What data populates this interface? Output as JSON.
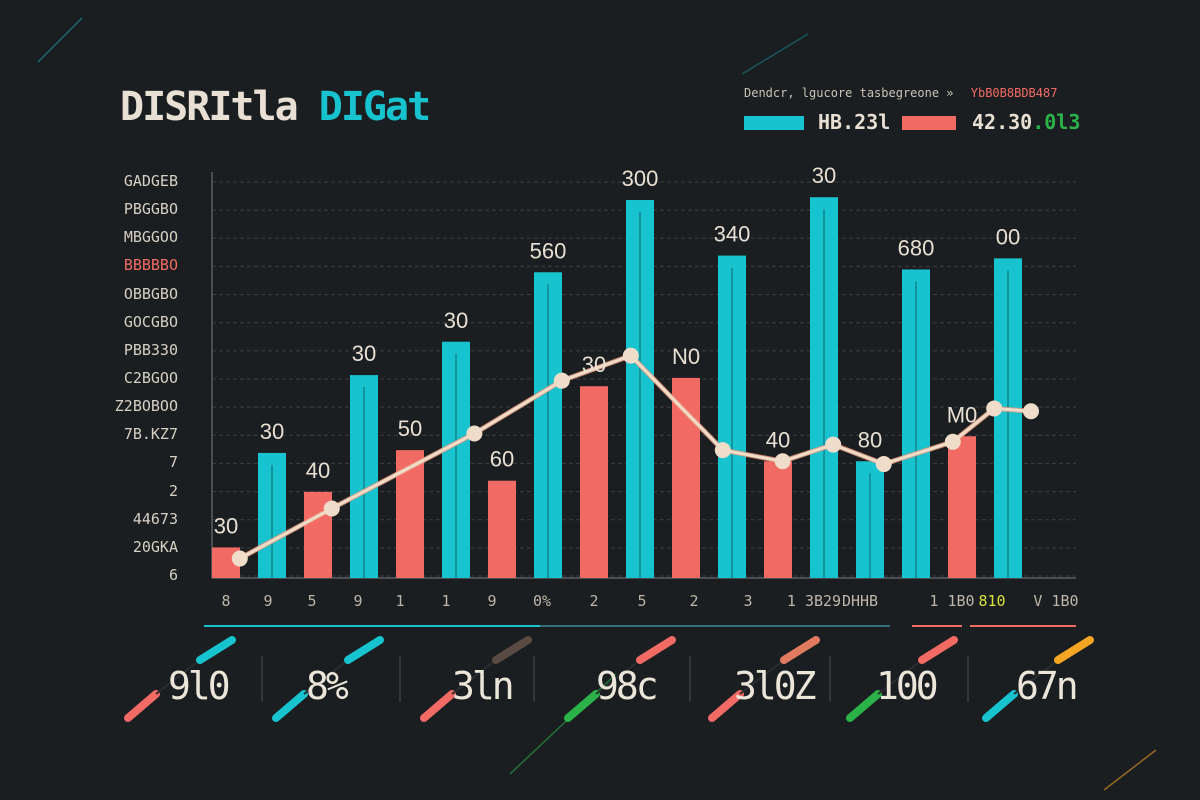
{
  "title": {
    "part1": "DISRItla",
    "part2": "DIGat"
  },
  "legend": {
    "caption": "Dendcr,  lgucore  tasbegreone  »",
    "caption_red": "YbB0B8BDB487",
    "series_a_value": "HB.23l",
    "series_b_value": "42.30",
    "series_b_suffix": ".0l3"
  },
  "colors": {
    "cyan": "#17c3cf",
    "red": "#f26a64",
    "line": "#f0ddc9",
    "background": "#1b1e20",
    "text": "#e8e0d4",
    "green": "#2bb34a",
    "orange": "#f5a623"
  },
  "y_labels": [
    "GADGEB",
    "PBGGBO",
    "MBGGOO",
    "BBBBBO",
    "OBBGBO",
    "GOCGBO",
    "PBB330",
    "C2BGOO",
    "Z2BOBOO",
    "7B.KZ7",
    "7",
    "2",
    "44673",
    "20GKA",
    "6"
  ],
  "y_label_highlight_index": 3,
  "chart_data": {
    "type": "bar",
    "title": "DISRItla DIGat",
    "xlabel": "",
    "ylabel": "",
    "ylim": [
      0,
      680
    ],
    "categories": [
      "8",
      "9",
      "5",
      "9",
      "1",
      "1",
      "9",
      "0%",
      "2",
      "5",
      "2",
      "3",
      "1 3B29",
      "DHHB",
      "1 1B0",
      "810",
      "V 1B0"
    ],
    "bar_groups": [
      {
        "category": "8",
        "series": "red",
        "value": 55,
        "label": "30"
      },
      {
        "category": "9",
        "series": "cyan",
        "value": 225,
        "label": "30"
      },
      {
        "category": "5",
        "series": "red",
        "value": 155,
        "label": "40"
      },
      {
        "category": "9",
        "series": "cyan",
        "value": 365,
        "label": "30"
      },
      {
        "category": "1",
        "series": "red",
        "value": 230,
        "label": "50"
      },
      {
        "category": "1",
        "series": "cyan",
        "value": 425,
        "label": "30"
      },
      {
        "category": "9",
        "series": "red",
        "value": 175,
        "label": "60"
      },
      {
        "category": "0%",
        "series": "cyan",
        "value": 550,
        "label": "560"
      },
      {
        "category": "2",
        "series": "red",
        "value": 345,
        "label": "30"
      },
      {
        "category": "5",
        "series": "cyan",
        "value": 680,
        "label": "300"
      },
      {
        "category": "2",
        "series": "red",
        "value": 360,
        "label": "N0"
      },
      {
        "category": "3",
        "series": "cyan",
        "value": 580,
        "label": "340"
      },
      {
        "category": "1 3B29",
        "series": "red",
        "value": 210,
        "label": "40"
      },
      {
        "category": "DHHB",
        "series": "cyan",
        "value": 685,
        "label": "30"
      },
      {
        "category": "DHHB",
        "series": "cyan",
        "value": 210,
        "label": "80"
      },
      {
        "category": "1 1B0",
        "series": "cyan",
        "value": 555,
        "label": "680"
      },
      {
        "category": "810",
        "series": "red",
        "value": 255,
        "label": "M0"
      },
      {
        "category": "V 1B0",
        "series": "cyan",
        "value": 575,
        "label": "00"
      }
    ],
    "line_series": {
      "name": "trend",
      "x_index": [
        0.3,
        2.3,
        5.4,
        7.3,
        8.8,
        10.8,
        12.1,
        13.2,
        14.3,
        15.8,
        16.7,
        17.5
      ],
      "values": [
        35,
        125,
        260,
        355,
        400,
        230,
        210,
        240,
        205,
        245,
        305,
        300
      ]
    }
  },
  "kpis": [
    {
      "value": "9l0"
    },
    {
      "value": "8%"
    },
    {
      "value": "3ln"
    },
    {
      "value": "98c"
    },
    {
      "value": "3l0Z"
    },
    {
      "value": "100"
    },
    {
      "value": "67n"
    }
  ]
}
